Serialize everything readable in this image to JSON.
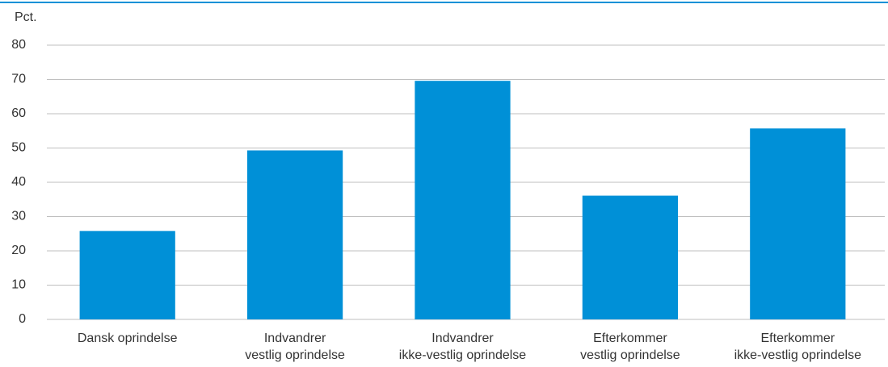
{
  "chart_data": {
    "type": "bar",
    "ylabel": "Pct.",
    "categories": [
      [
        "Dansk oprindelse"
      ],
      [
        "Indvandrer",
        "vestlig oprindelse"
      ],
      [
        "Indvandrer",
        "ikke-vestlig oprindelse"
      ],
      [
        "Efterkommer",
        "vestlig oprindelse"
      ],
      [
        "Efterkommer",
        "ikke-vestlig oprindelse"
      ]
    ],
    "values": [
      25.8,
      49.3,
      69.6,
      36.1,
      55.7
    ],
    "color": "#0090d7",
    "ylim": [
      0,
      80
    ],
    "yticks": [
      0,
      10,
      20,
      30,
      40,
      50,
      60,
      70,
      80
    ],
    "grid": true
  }
}
